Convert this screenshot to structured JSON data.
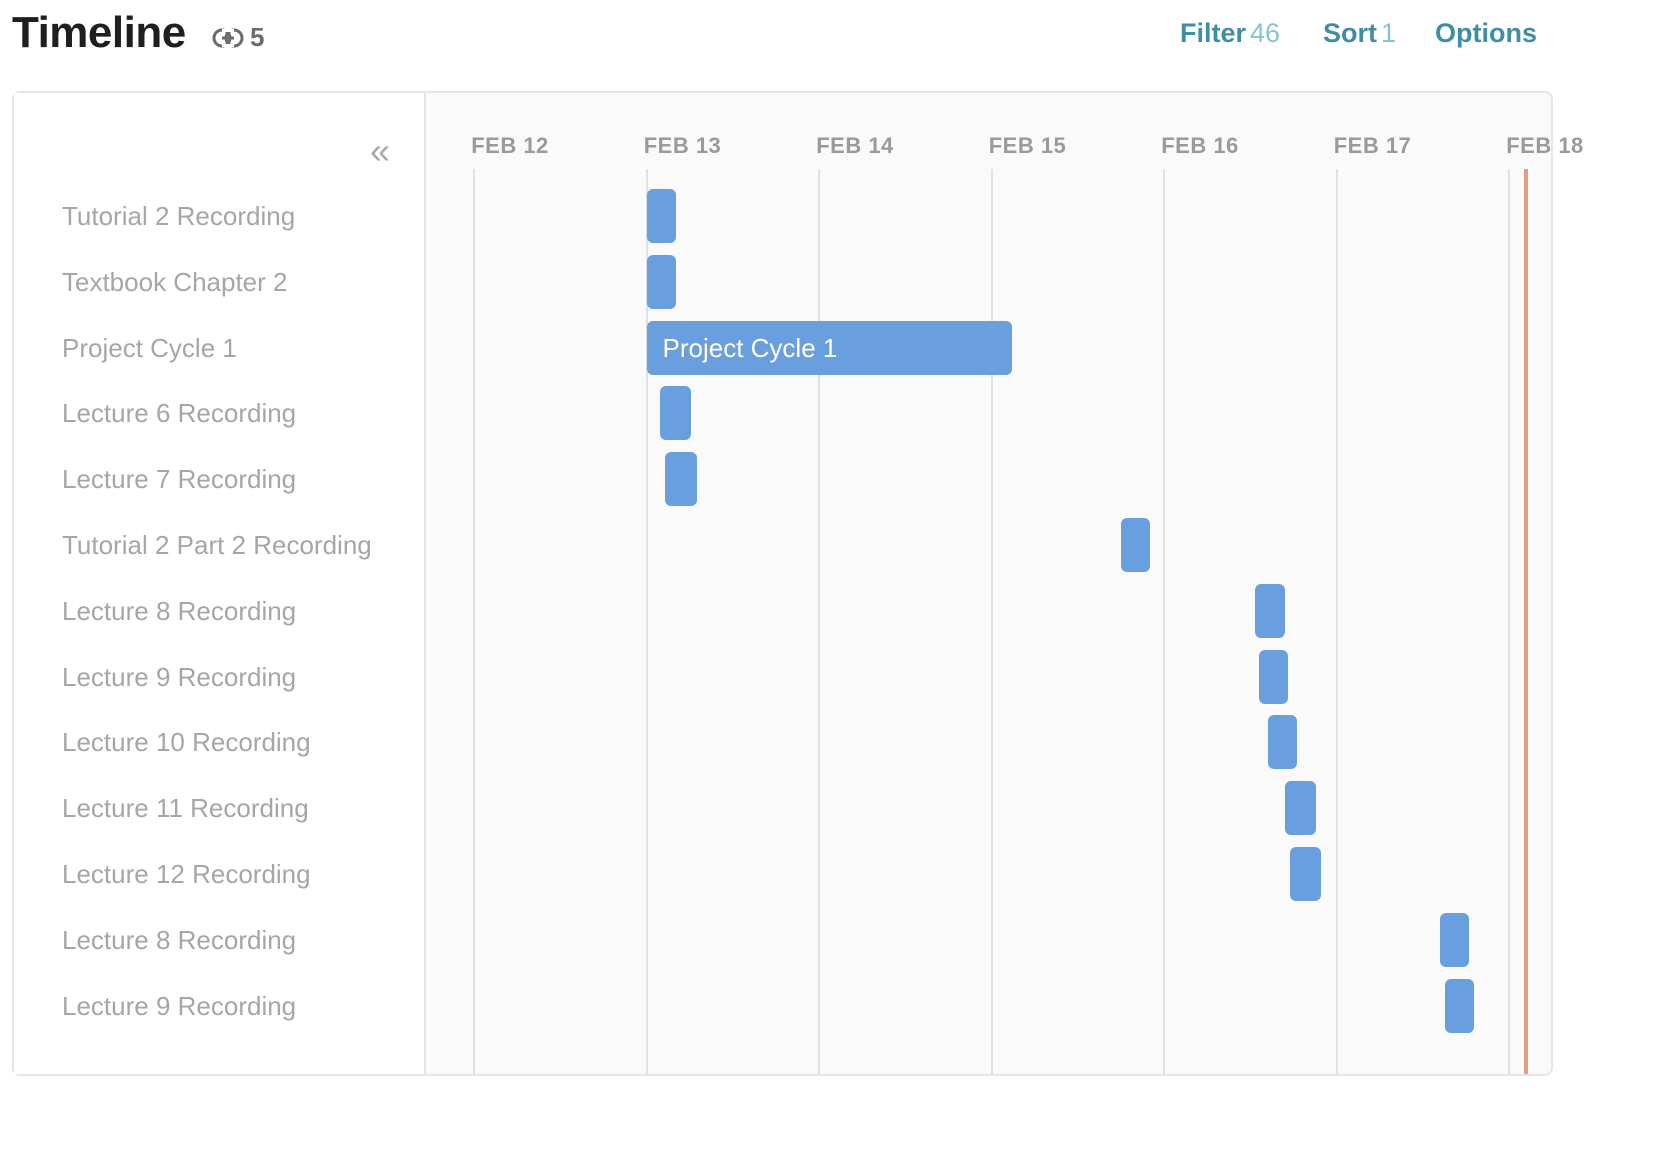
{
  "header": {
    "title": "Timeline",
    "link_icon": "link-icon",
    "link_count": "5",
    "filter": {
      "label": "Filter",
      "count": "46"
    },
    "sort": {
      "label": "Sort",
      "count": "1"
    },
    "options": {
      "label": "Options"
    }
  },
  "sidebar": {
    "collapse_glyph": "«",
    "rows": [
      "Tutorial 2 Recording",
      "Textbook Chapter 2",
      "Project Cycle 1",
      "Lecture 6 Recording",
      "Lecture 7 Recording",
      "Tutorial 2 Part 2 Recording",
      "Lecture 8 Recording",
      "Lecture 9 Recording",
      "Lecture 10 Recording",
      "Lecture 11 Recording",
      "Lecture 12 Recording",
      "Lecture 8 Recording",
      "Lecture 9 Recording"
    ]
  },
  "timeline": {
    "dates": [
      "FEB 12",
      "FEB 13",
      "FEB 14",
      "FEB 15",
      "FEB 16",
      "FEB 17",
      "FEB 18"
    ],
    "bar_color": "#6a9fdf",
    "today_color": "#e99b83",
    "today_day": 18.1,
    "bars": [
      {
        "start": 13.0,
        "end": 13.17,
        "label": ""
      },
      {
        "start": 13.0,
        "end": 13.17,
        "label": ""
      },
      {
        "start": 13.0,
        "end": 15.12,
        "label": "Project Cycle 1"
      },
      {
        "start": 13.08,
        "end": 13.26,
        "label": ""
      },
      {
        "start": 13.11,
        "end": 13.29,
        "label": ""
      },
      {
        "start": 15.75,
        "end": 15.92,
        "label": ""
      },
      {
        "start": 16.53,
        "end": 16.7,
        "label": ""
      },
      {
        "start": 16.55,
        "end": 16.72,
        "label": ""
      },
      {
        "start": 16.6,
        "end": 16.77,
        "label": ""
      },
      {
        "start": 16.7,
        "end": 16.88,
        "label": ""
      },
      {
        "start": 16.73,
        "end": 16.91,
        "label": ""
      },
      {
        "start": 17.6,
        "end": 17.77,
        "label": ""
      },
      {
        "start": 17.63,
        "end": 17.8,
        "label": ""
      }
    ]
  }
}
